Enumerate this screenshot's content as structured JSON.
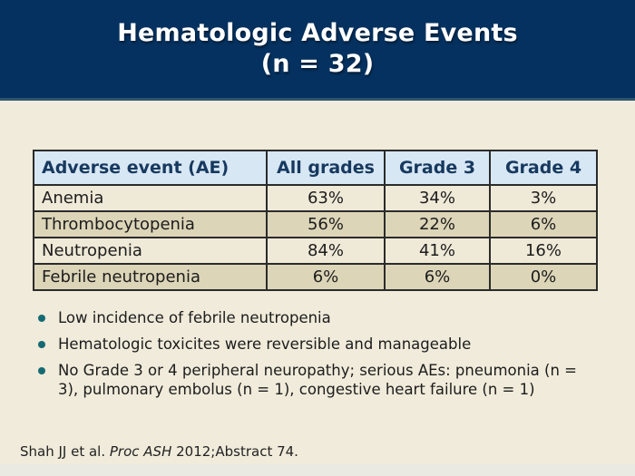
{
  "slide": {
    "title_line1": "Hematologic Adverse Events",
    "title_line2": "(n = 32)"
  },
  "table": {
    "columns": [
      "Adverse event (AE)",
      "All grades",
      "Grade 3",
      "Grade 4"
    ],
    "rows": [
      [
        "Anemia",
        "63%",
        "34%",
        "3%"
      ],
      [
        "Thrombocytopenia",
        "56%",
        "22%",
        "6%"
      ],
      [
        "Neutropenia",
        "84%",
        "41%",
        "16%"
      ],
      [
        "Febrile neutropenia",
        "6%",
        "6%",
        "0%"
      ]
    ]
  },
  "bullets": [
    "Low incidence of febrile neutropenia",
    "Hematologic toxicites were reversible and manageable",
    "No Grade 3 or 4 peripheral neuropathy; serious AEs: pneumonia (n = 3), pulmonary embolus (n = 1), congestive heart failure (n = 1)"
  ],
  "citation": {
    "prefix": "Shah JJ et al. ",
    "journal": "Proc ASH",
    "suffix": " 2012;Abstract 74."
  },
  "colors": {
    "title_band_bg": "#04315F",
    "body_bg": "#F0EBDA",
    "table_header_bg": "#D7E7F4",
    "table_header_text": "#17395F",
    "row_light": "#EFE9D7",
    "row_dark": "#DCD5B8",
    "table_border": "#2B2B2B",
    "bullet_dot": "#166A73"
  }
}
